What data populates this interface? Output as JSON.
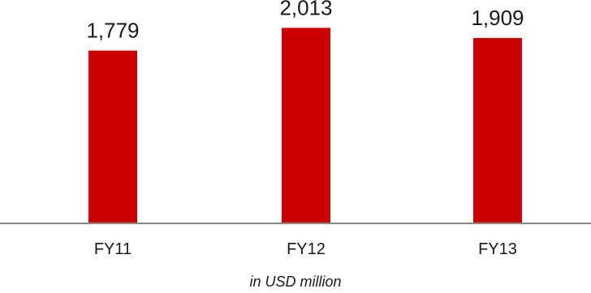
{
  "chart_data": {
    "type": "bar",
    "categories": [
      "FY11",
      "FY12",
      "FY13"
    ],
    "values": [
      1779,
      2013,
      1909
    ],
    "data_labels": [
      "1,779",
      "2,013",
      "1,909"
    ],
    "note": "in USD million",
    "ylim": [
      0,
      2300
    ],
    "grid": false,
    "bar_color": "#cc0000",
    "axis_color": "#888888"
  }
}
